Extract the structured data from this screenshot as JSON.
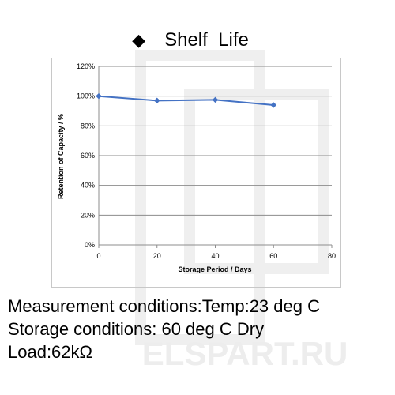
{
  "header": {
    "title": "Shelf  Life",
    "bullet_icon": "black-diamond-icon"
  },
  "chart_data": {
    "type": "line",
    "title": "",
    "xlabel": "Storage Period / Days",
    "ylabel": "Retention of Capacity / %",
    "xlim": [
      0,
      80
    ],
    "ylim": [
      0,
      120
    ],
    "x_ticks": [
      0,
      20,
      40,
      60,
      80
    ],
    "x_tick_labels": [
      "0",
      "20",
      "40",
      "60",
      "80"
    ],
    "y_ticks": [
      0,
      20,
      40,
      60,
      80,
      100,
      120
    ],
    "y_tick_labels": [
      "0%",
      "20%",
      "40%",
      "60%",
      "80%",
      "100%",
      "120%"
    ],
    "grid": true,
    "legend": "none",
    "series": [
      {
        "color": "#4472c4",
        "marker": "diamond",
        "x": [
          0,
          20,
          40,
          60
        ],
        "y": [
          100,
          97,
          97.5,
          94
        ]
      }
    ]
  },
  "notes": {
    "measurement": "Measurement conditions:Temp:23 deg C",
    "storage": "Storage conditions: 60 deg C Dry",
    "load": "Load:62kΩ"
  },
  "watermark": {
    "text": "ELSPART.RU",
    "color": "#ececec"
  }
}
